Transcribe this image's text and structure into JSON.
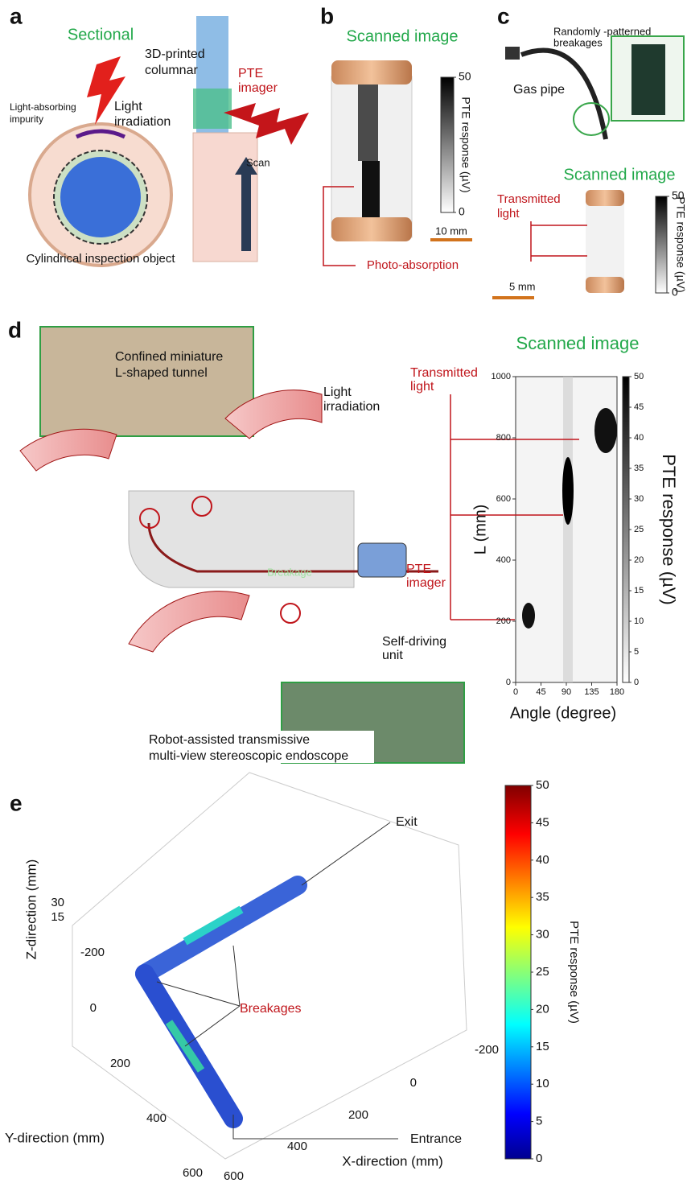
{
  "a": {
    "label": "a",
    "title": "Sectional",
    "impurity": [
      "Light-absorbing",
      "impurity"
    ],
    "irradiation": [
      "Light",
      "irradiation"
    ],
    "object": "Cylindrical inspection object",
    "columnar": [
      "3D-printed",
      "columnar"
    ],
    "imager": [
      "PTE",
      "imager"
    ],
    "scan": "Scan"
  },
  "b": {
    "label": "b",
    "title": "Scanned image",
    "colorbar": {
      "label": "PTE response (µV)",
      "lim": [
        0,
        50
      ],
      "ticks": [
        0,
        50
      ]
    },
    "scale": "10 mm",
    "annotation": "Photo-absorption"
  },
  "c": {
    "label": "c",
    "breakages": [
      "Randomly -patterned",
      "breakages"
    ],
    "pipe": "Gas pipe",
    "title": "Scanned image",
    "transmitted": [
      "Transmitted",
      "light"
    ],
    "scale": "5 mm",
    "colorbar": {
      "label": "PTE response (µV)",
      "lim": [
        0,
        50
      ],
      "ticks": [
        0,
        50
      ]
    }
  },
  "d": {
    "label": "d",
    "tunnel": [
      "Confined miniature",
      "L-shaped tunnel"
    ],
    "irradiation": [
      "Light",
      "irradiation"
    ],
    "breakage": "Breakage",
    "imager": [
      "PTE",
      "imager"
    ],
    "unit": [
      "Self-driving",
      "unit"
    ],
    "endoscope": [
      "Robot-assisted transmissive",
      "multi-view stereoscopic endoscope"
    ],
    "title": "Scanned image",
    "transmitted": [
      "Transmitted",
      "light"
    ],
    "chart": {
      "ylabel": "L (mm)",
      "xlabel": "Angle (degree)",
      "xlim": [
        0,
        180
      ],
      "xticks": [
        0,
        45,
        90,
        135,
        180
      ],
      "ylim": [
        0,
        1000
      ],
      "yticks": [
        0,
        200,
        400,
        600,
        800,
        1000
      ],
      "colorbar": {
        "label": "PTE response (µV)",
        "lim": [
          0,
          50
        ],
        "ticks": [
          0,
          5,
          10,
          15,
          20,
          25,
          30,
          35,
          40,
          45,
          50
        ]
      }
    }
  },
  "e": {
    "label": "e",
    "exit": "Exit",
    "breakages": "Breakages",
    "entrance": "Entrance",
    "zlabel": "Z-direction (mm)",
    "zticks": [
      30,
      15
    ],
    "ylabel": "Y-direction (mm)",
    "yticks": [
      -200,
      0,
      200,
      400,
      600
    ],
    "xlabel": "X-direction (mm)",
    "xticks": [
      -200,
      0,
      200,
      400,
      600
    ],
    "colorbar": {
      "label": "PTE response (µV)",
      "lim": [
        0,
        50
      ],
      "ticks": [
        0,
        5,
        10,
        15,
        20,
        25,
        30,
        35,
        40,
        45,
        50
      ]
    }
  }
}
